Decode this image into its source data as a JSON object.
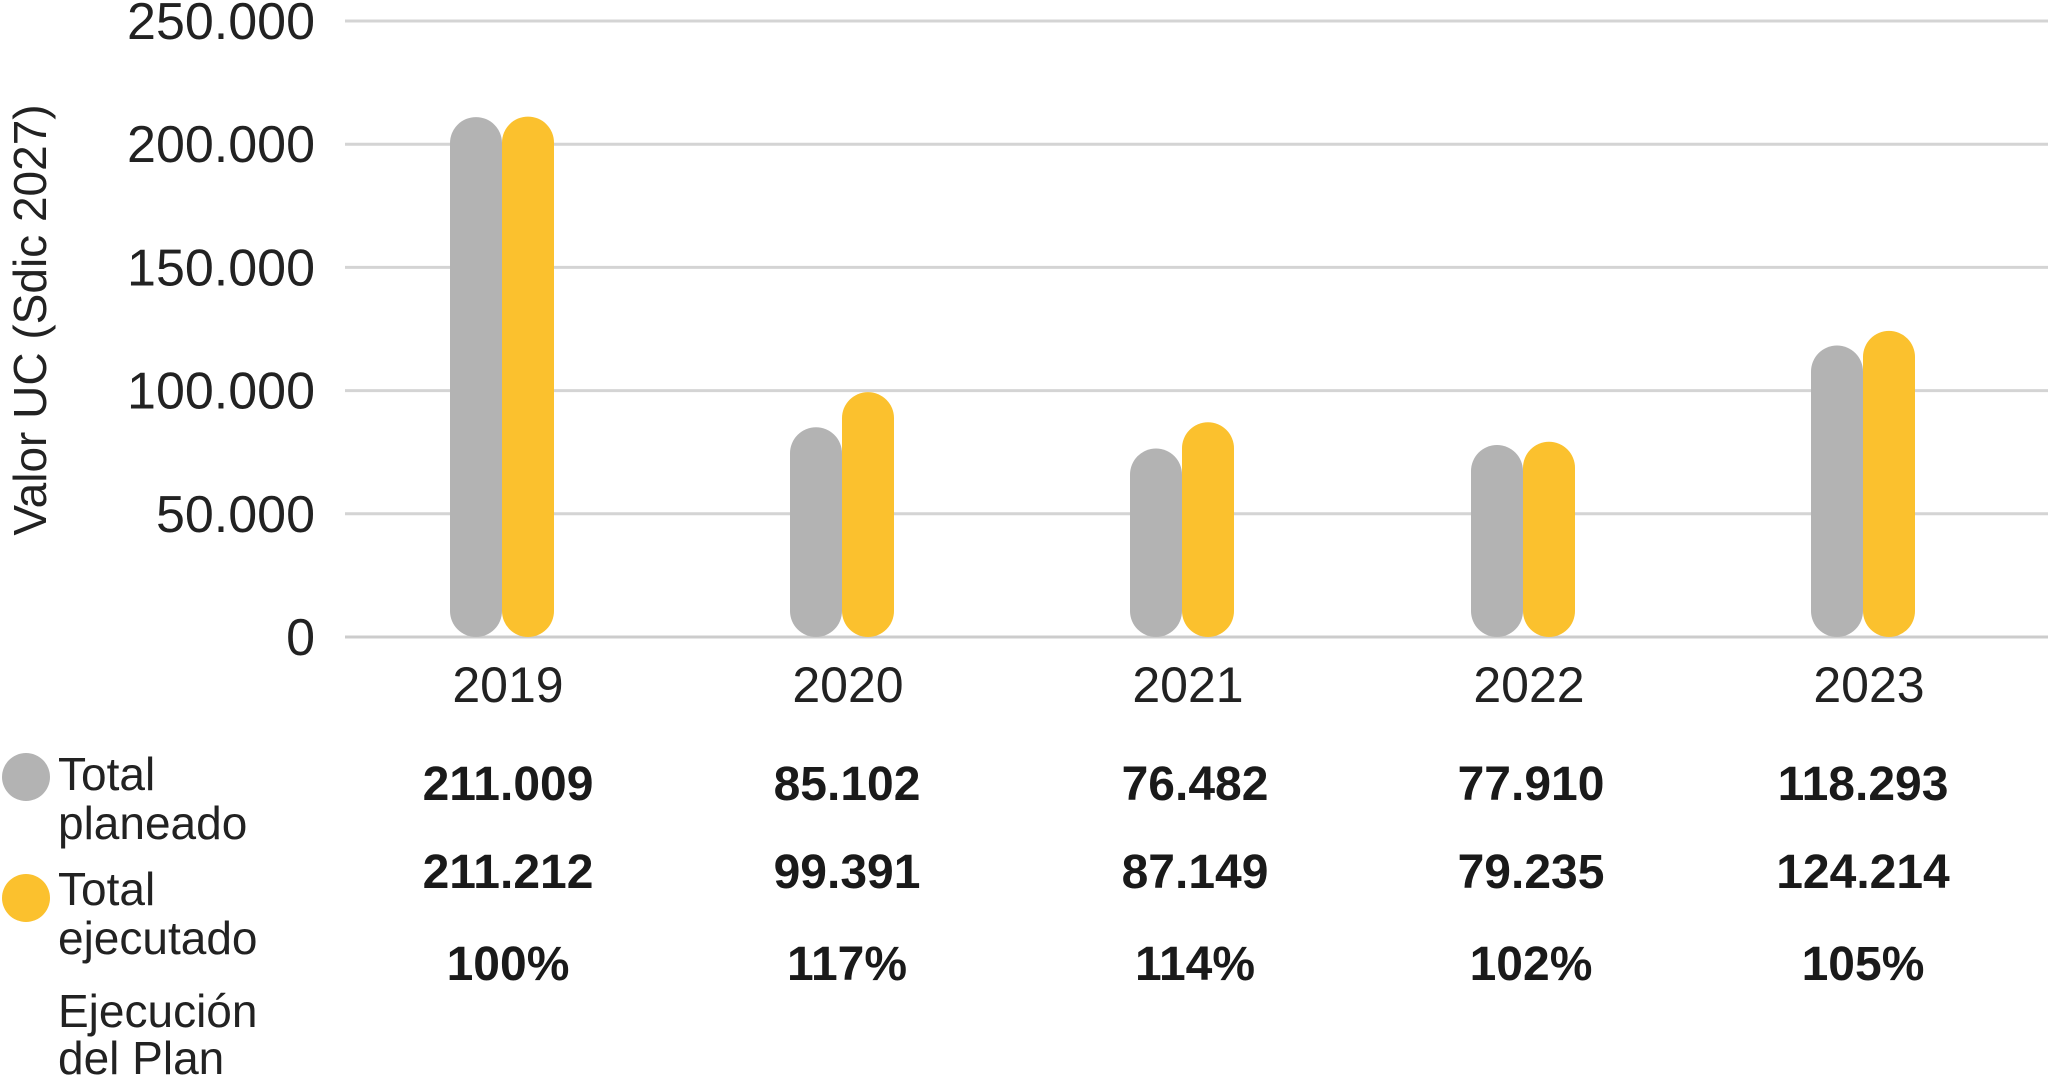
{
  "chart_data": {
    "type": "bar",
    "ylabel": "Valor UC (Sdic 2027)",
    "ylim": [
      0,
      250000
    ],
    "yticks": [
      0,
      50000,
      100000,
      150000,
      200000,
      250000
    ],
    "ytick_labels": [
      "0",
      "50.000",
      "100.000",
      "150.000",
      "200.000",
      "250.000"
    ],
    "grid": true,
    "categories": [
      "2019",
      "2020",
      "2021",
      "2022",
      "2023"
    ],
    "series": [
      {
        "name": "Total planeado",
        "color": "#b3b3b3",
        "values": [
          211009,
          85102,
          76482,
          77910,
          118293
        ],
        "labels": [
          "211.009",
          "85.102",
          "76.482",
          "77.910",
          "118.293"
        ]
      },
      {
        "name": "Total ejecutado",
        "color": "#fbc12e",
        "values": [
          211212,
          99391,
          87149,
          79235,
          124214
        ],
        "labels": [
          "211.212",
          "99.391",
          "87.149",
          "79.235",
          "124.214"
        ]
      }
    ],
    "table_rows": [
      {
        "name": "Ejecución del Plan",
        "labels": [
          "100%",
          "117%",
          "114%",
          "102%",
          "105%"
        ]
      }
    ],
    "legend_position": "bottom-left",
    "legend_lines": [
      [
        "Total",
        "planeado"
      ],
      [
        "Total",
        "ejecutado"
      ],
      [
        "Ejecución",
        "del Plan"
      ]
    ]
  }
}
